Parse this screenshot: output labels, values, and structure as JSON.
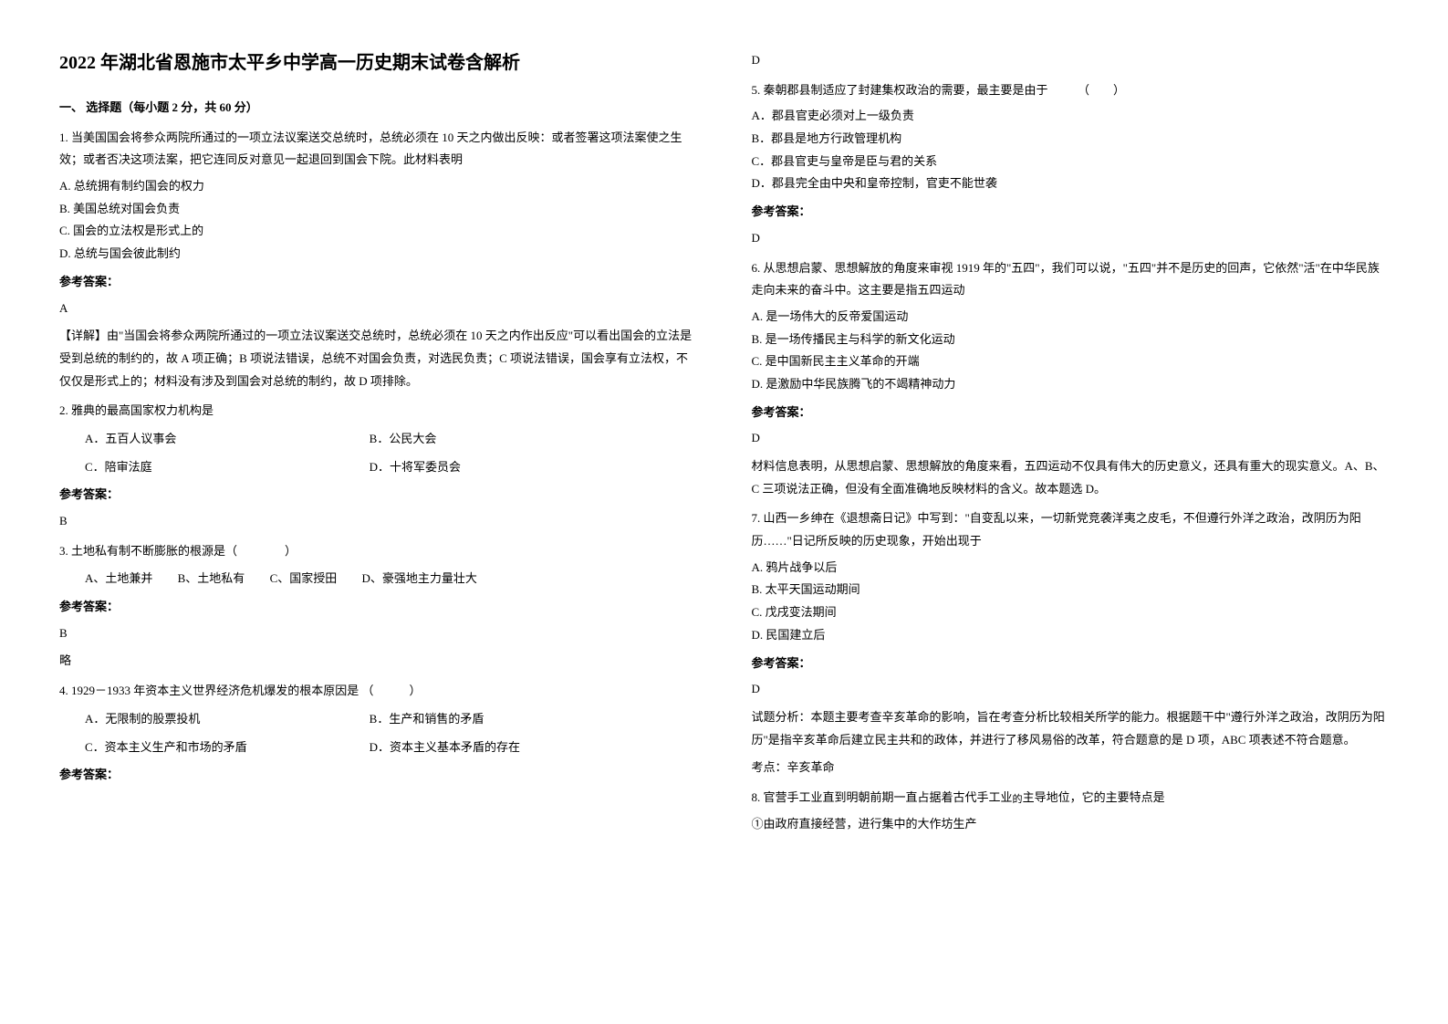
{
  "title": "2022 年湖北省恩施市太平乡中学高一历史期末试卷含解析",
  "section1": "一、 选择题（每小题 2 分，共 60 分）",
  "answer_label": "参考答案：",
  "left": {
    "q1": {
      "text": "1. 当美国国会将参众两院所通过的一项立法议案送交总统时，总统必须在 10 天之内做出反映：或者签署这项法案使之生效；或者否决这项法案，把它连同反对意见一起退回到国会下院。此材料表明",
      "optA": "A. 总统拥有制约国会的权力",
      "optB": "B. 美国总统对国会负责",
      "optC": "C. 国会的立法权是形式上的",
      "optD": "D. 总统与国会彼此制约",
      "answer": "A",
      "explanation": "【详解】由\"当国会将参众两院所通过的一项立法议案送交总统时，总统必须在 10 天之内作出反应\"可以看出国会的立法是受到总统的制约的，故 A 项正确；B 项说法错误，总统不对国会负责，对选民负责；C 项说法错误，国会享有立法权，不仅仅是形式上的；材料没有涉及到国会对总统的制约，故 D 项排除。"
    },
    "q2": {
      "text": "2. 雅典的最高国家权力机构是",
      "optA": "A．五百人议事会",
      "optB": "B．公民大会",
      "optC": "C．陪审法庭",
      "optD": "D．十将军委员会",
      "answer": "B"
    },
    "q3": {
      "text": "3. 土地私有制不断膨胀的根源是（　　　　）",
      "optA": "A、土地兼并",
      "optB": "B、土地私有",
      "optC": "C、国家授田",
      "optD": "D、豪强地主力量壮大",
      "answer": "B",
      "explanation": "略"
    },
    "q4": {
      "text": "4. 1929－1933 年资本主义世界经济危机爆发的根本原因是 （　　　）",
      "optA": "A．无限制的股票投机",
      "optB": "B．生产和销售的矛盾",
      "optC": "C．资本主义生产和市场的矛盾",
      "optD": "D．资本主义基本矛盾的存在"
    }
  },
  "right": {
    "q4_answer": "D",
    "q5": {
      "text": "5. 秦朝郡县制适应了封建集权政治的需要，最主要是由于　　　（　　）",
      "optA": "A．郡县官吏必须对上一级负责",
      "optB": "B．郡县是地方行政管理机构",
      "optC": "C．郡县官吏与皇帝是臣与君的关系",
      "optD": "D．郡县完全由中央和皇帝控制，官吏不能世袭",
      "answer": "D"
    },
    "q6": {
      "text": "6. 从思想启蒙、思想解放的角度来审视 1919 年的\"五四\"，我们可以说，\"五四\"并不是历史的回声，它依然\"活\"在中华民族走向未来的奋斗中。这主要是指五四运动",
      "optA": "A. 是一场伟大的反帝爱国运动",
      "optB": "B. 是一场传播民主与科学的新文化运动",
      "optC": "C. 是中国新民主主义革命的开端",
      "optD": "D. 是激励中华民族腾飞的不竭精神动力",
      "answer": "D",
      "explanation": "材料信息表明，从思想启蒙、思想解放的角度来看，五四运动不仅具有伟大的历史意义，还具有重大的现实意义。A、B、C 三项说法正确，但没有全面准确地反映材料的含义。故本题选 D。"
    },
    "q7": {
      "text": "7. 山西一乡绅在《退想斋日记》中写到：\"自变乱以来，一切新党竞袭洋夷之皮毛，不但遵行外洋之政治，改阴历为阳历……\"日记所反映的历史现象，开始出现于",
      "optA": "A. 鸦片战争以后",
      "optB": "B. 太平天国运动期间",
      "optC": "C. 戊戌变法期间",
      "optD": "D. 民国建立后",
      "answer": "D",
      "explanation": "试题分析：本题主要考查辛亥革命的影响，旨在考查分析比较相关所学的能力。根据题干中\"遵行外洋之政治，改阴历为阳历\"是指辛亥革命后建立民主共和的政体，并进行了移风易俗的改革，符合题意的是 D 项，ABC 项表述不符合题意。",
      "kaodian": "考点：辛亥革命"
    },
    "q8": {
      "text_part1": "8. 官营手工业直到明朝前期一直占据着古代手工业",
      "text_de": "的",
      "text_part2": "主导地位，它的主要特点是",
      "item1": "①由政府直接经营，进行集中的大作坊生产"
    }
  }
}
